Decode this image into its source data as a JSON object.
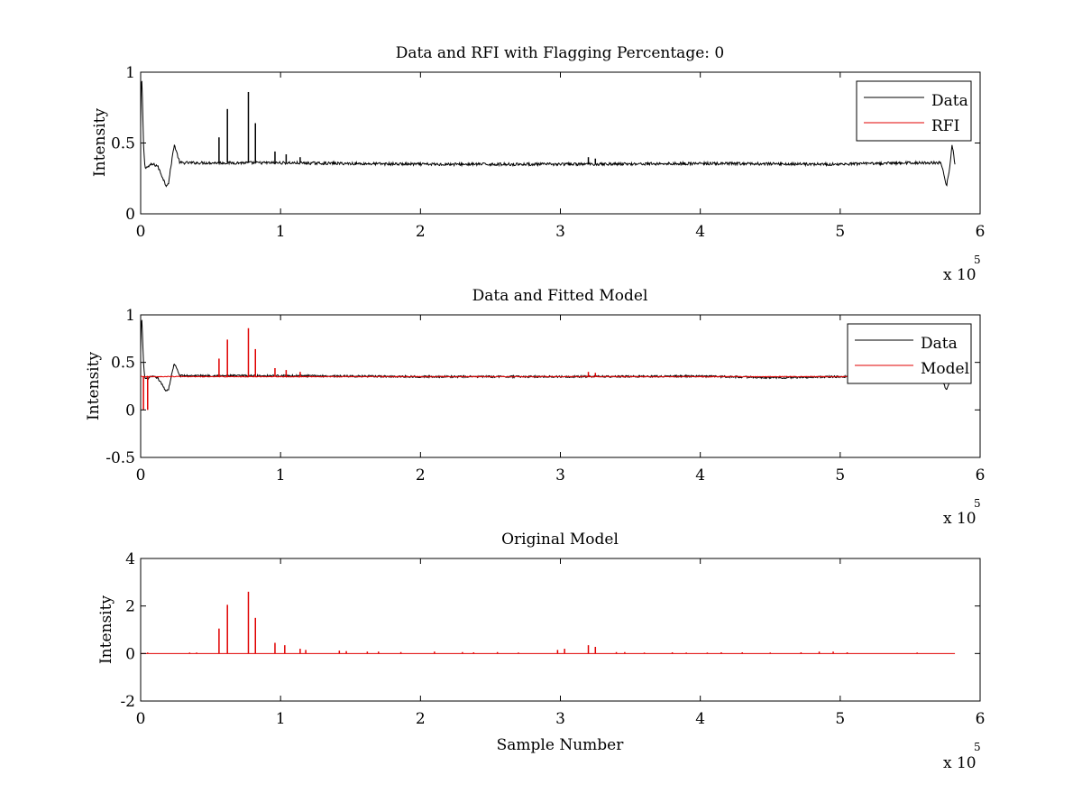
{
  "figure": {
    "background": "#ffffff"
  },
  "colors": {
    "data": "#000000",
    "model": "#e00000",
    "axes": "#000000"
  },
  "chart_data": [
    {
      "type": "line",
      "title": "Data and RFI with Flagging Percentage: 0",
      "xlabel": "",
      "ylabel": "Intensity",
      "xlim": [
        0,
        6
      ],
      "ylim": [
        0,
        1
      ],
      "xticks": [
        "0",
        "1",
        "2",
        "3",
        "4",
        "5",
        "6"
      ],
      "yticks": [
        "0",
        "0.5",
        "1"
      ],
      "x_multiplier": {
        "base": "x 10",
        "exponent": "5"
      },
      "legend": {
        "position": "top-right",
        "entries": [
          {
            "label": "Data",
            "color": "#000000"
          },
          {
            "label": "RFI",
            "color": "#e00000"
          }
        ]
      },
      "series": [
        {
          "name": "Data",
          "color": "#000000",
          "baseline": 0.355,
          "noise": 0.01,
          "x": [
            0,
            0.005,
            0.01,
            0.02,
            0.03,
            0.05,
            0.08,
            0.12,
            0.16,
            0.18,
            0.2,
            0.22,
            0.24,
            0.28,
            0.35,
            0.5,
            1.0,
            2.0,
            3.0,
            4.0,
            5.0,
            5.5,
            5.72,
            5.76,
            5.78,
            5.8,
            5.82
          ],
          "y": [
            0.6,
            0.97,
            0.92,
            0.5,
            0.33,
            0.33,
            0.35,
            0.34,
            0.25,
            0.2,
            0.22,
            0.36,
            0.49,
            0.36,
            0.36,
            0.36,
            0.36,
            0.35,
            0.35,
            0.355,
            0.35,
            0.36,
            0.36,
            0.2,
            0.3,
            0.49,
            0.35
          ],
          "spikes": [
            [
              0.56,
              0.54
            ],
            [
              0.62,
              0.74
            ],
            [
              0.77,
              0.86
            ],
            [
              0.82,
              0.64
            ],
            [
              0.96,
              0.44
            ],
            [
              1.04,
              0.42
            ],
            [
              1.14,
              0.4
            ],
            [
              3.2,
              0.4
            ],
            [
              3.25,
              0.39
            ]
          ]
        }
      ]
    },
    {
      "type": "line",
      "title": "Data and Fitted Model",
      "xlabel": "",
      "ylabel": "Intensity",
      "xlim": [
        0,
        6
      ],
      "ylim": [
        -0.5,
        1
      ],
      "xticks": [
        "0",
        "1",
        "2",
        "3",
        "4",
        "5",
        "6"
      ],
      "yticks": [
        "-0.5",
        "0",
        "0.5",
        "1"
      ],
      "x_multiplier": {
        "base": "x 10",
        "exponent": "5"
      },
      "legend": {
        "position": "top-right",
        "entries": [
          {
            "label": "Data",
            "color": "#000000"
          },
          {
            "label": "Model",
            "color": "#e00000"
          }
        ]
      },
      "series": [
        {
          "name": "Data",
          "color": "#000000",
          "baseline": 0.355,
          "noise": 0.01,
          "x": [
            0,
            0.005,
            0.01,
            0.02,
            0.03,
            0.05,
            0.08,
            0.12,
            0.16,
            0.18,
            0.2,
            0.22,
            0.24,
            0.28,
            0.35,
            0.5,
            1.0,
            2.0,
            3.0,
            4.0,
            4.5,
            4.6,
            5.0,
            5.5,
            5.72,
            5.76,
            5.78,
            5.8,
            5.82
          ],
          "y": [
            0.6,
            0.97,
            0.92,
            0.5,
            0.33,
            0.33,
            0.35,
            0.34,
            0.25,
            0.2,
            0.22,
            0.36,
            0.49,
            0.36,
            0.36,
            0.36,
            0.36,
            0.35,
            0.35,
            0.355,
            0.34,
            0.34,
            0.35,
            0.36,
            0.36,
            0.2,
            0.3,
            0.49,
            0.35
          ]
        },
        {
          "name": "Model",
          "color": "#e00000",
          "baseline": 0.35,
          "noise": 0.004,
          "x": [
            0,
            0.02,
            0.05,
            5.82
          ],
          "y": [
            0.35,
            0.35,
            0.35,
            0.35
          ],
          "spikes": [
            [
              0.02,
              0.0
            ],
            [
              0.05,
              0.0
            ],
            [
              0.56,
              0.54
            ],
            [
              0.62,
              0.74
            ],
            [
              0.77,
              0.86
            ],
            [
              0.82,
              0.64
            ],
            [
              0.96,
              0.44
            ],
            [
              1.04,
              0.42
            ],
            [
              1.14,
              0.4
            ],
            [
              3.2,
              0.4
            ],
            [
              3.25,
              0.39
            ]
          ]
        }
      ]
    },
    {
      "type": "line",
      "title": "Original Model",
      "xlabel": "Sample Number",
      "ylabel": "Intensity",
      "xlim": [
        0,
        6
      ],
      "ylim": [
        -2,
        4
      ],
      "xticks": [
        "0",
        "1",
        "2",
        "3",
        "4",
        "5",
        "6"
      ],
      "yticks": [
        "-2",
        "0",
        "2",
        "4"
      ],
      "x_multiplier": {
        "base": "x 10",
        "exponent": "5"
      },
      "legend": null,
      "series": [
        {
          "name": "Model",
          "color": "#e00000",
          "baseline": 0.0,
          "noise": 0.0,
          "x": [
            0,
            5.82
          ],
          "y": [
            0,
            0
          ],
          "spikes": [
            [
              0.56,
              1.05
            ],
            [
              0.62,
              2.05
            ],
            [
              0.77,
              2.6
            ],
            [
              0.82,
              1.5
            ],
            [
              0.96,
              0.45
            ],
            [
              1.03,
              0.35
            ],
            [
              1.14,
              0.2
            ],
            [
              1.18,
              0.15
            ],
            [
              1.42,
              0.12
            ],
            [
              1.47,
              0.1
            ],
            [
              1.62,
              0.08
            ],
            [
              1.7,
              0.08
            ],
            [
              1.86,
              0.06
            ],
            [
              2.1,
              0.08
            ],
            [
              2.3,
              0.06
            ],
            [
              2.55,
              0.06
            ],
            [
              2.98,
              0.15
            ],
            [
              3.03,
              0.2
            ],
            [
              3.2,
              0.35
            ],
            [
              3.25,
              0.28
            ],
            [
              3.4,
              0.06
            ],
            [
              3.46,
              0.06
            ],
            [
              3.8,
              0.05
            ],
            [
              4.15,
              0.05
            ],
            [
              4.3,
              0.05
            ],
            [
              4.72,
              0.05
            ],
            [
              4.85,
              0.08
            ],
            [
              4.95,
              0.08
            ],
            [
              5.05,
              0.05
            ],
            [
              0.35,
              0.04
            ],
            [
              0.4,
              0.04
            ],
            [
              0.05,
              0.04
            ],
            [
              2.38,
              0.05
            ],
            [
              2.7,
              0.04
            ],
            [
              3.6,
              0.04
            ],
            [
              3.9,
              0.04
            ],
            [
              4.05,
              0.04
            ],
            [
              4.5,
              0.04
            ],
            [
              5.55,
              0.04
            ]
          ]
        }
      ]
    }
  ]
}
